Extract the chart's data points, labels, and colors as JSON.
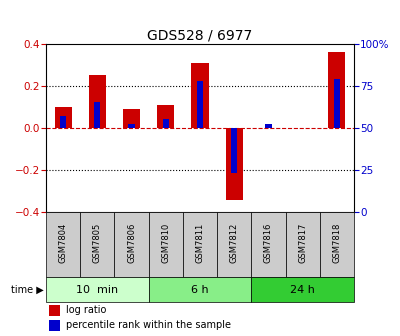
{
  "title": "GDS528 / 6977",
  "samples": [
    "GSM7804",
    "GSM7805",
    "GSM7806",
    "GSM7810",
    "GSM7811",
    "GSM7812",
    "GSM7816",
    "GSM7817",
    "GSM7818"
  ],
  "log_ratio": [
    0.1,
    0.25,
    0.09,
    0.11,
    0.31,
    -0.345,
    0.0,
    0.0,
    0.36
  ],
  "percentile_rank": [
    57,
    65,
    52,
    55,
    78,
    23,
    52,
    0,
    79
  ],
  "groups": [
    {
      "label": "10  min",
      "start": 0,
      "end": 3,
      "color": "#ccffcc"
    },
    {
      "label": "6 h",
      "start": 3,
      "end": 6,
      "color": "#88ee88"
    },
    {
      "label": "24 h",
      "start": 6,
      "end": 9,
      "color": "#33cc33"
    }
  ],
  "ylim_left": [
    -0.4,
    0.4
  ],
  "ylim_right": [
    0,
    100
  ],
  "bar_color_red": "#cc0000",
  "bar_color_blue": "#0000cc",
  "yticks_left": [
    -0.4,
    -0.2,
    0.0,
    0.2,
    0.4
  ],
  "yticks_right": [
    0,
    25,
    50,
    75,
    100
  ],
  "ytick_labels_right": [
    "0",
    "25",
    "50",
    "75",
    "100%"
  ],
  "hline_color": "#cc0000",
  "dotline_color": "#000000",
  "bg_color": "#ffffff",
  "sample_box_color": "#cccccc",
  "bar_width": 0.5,
  "blue_bar_width": 0.18
}
